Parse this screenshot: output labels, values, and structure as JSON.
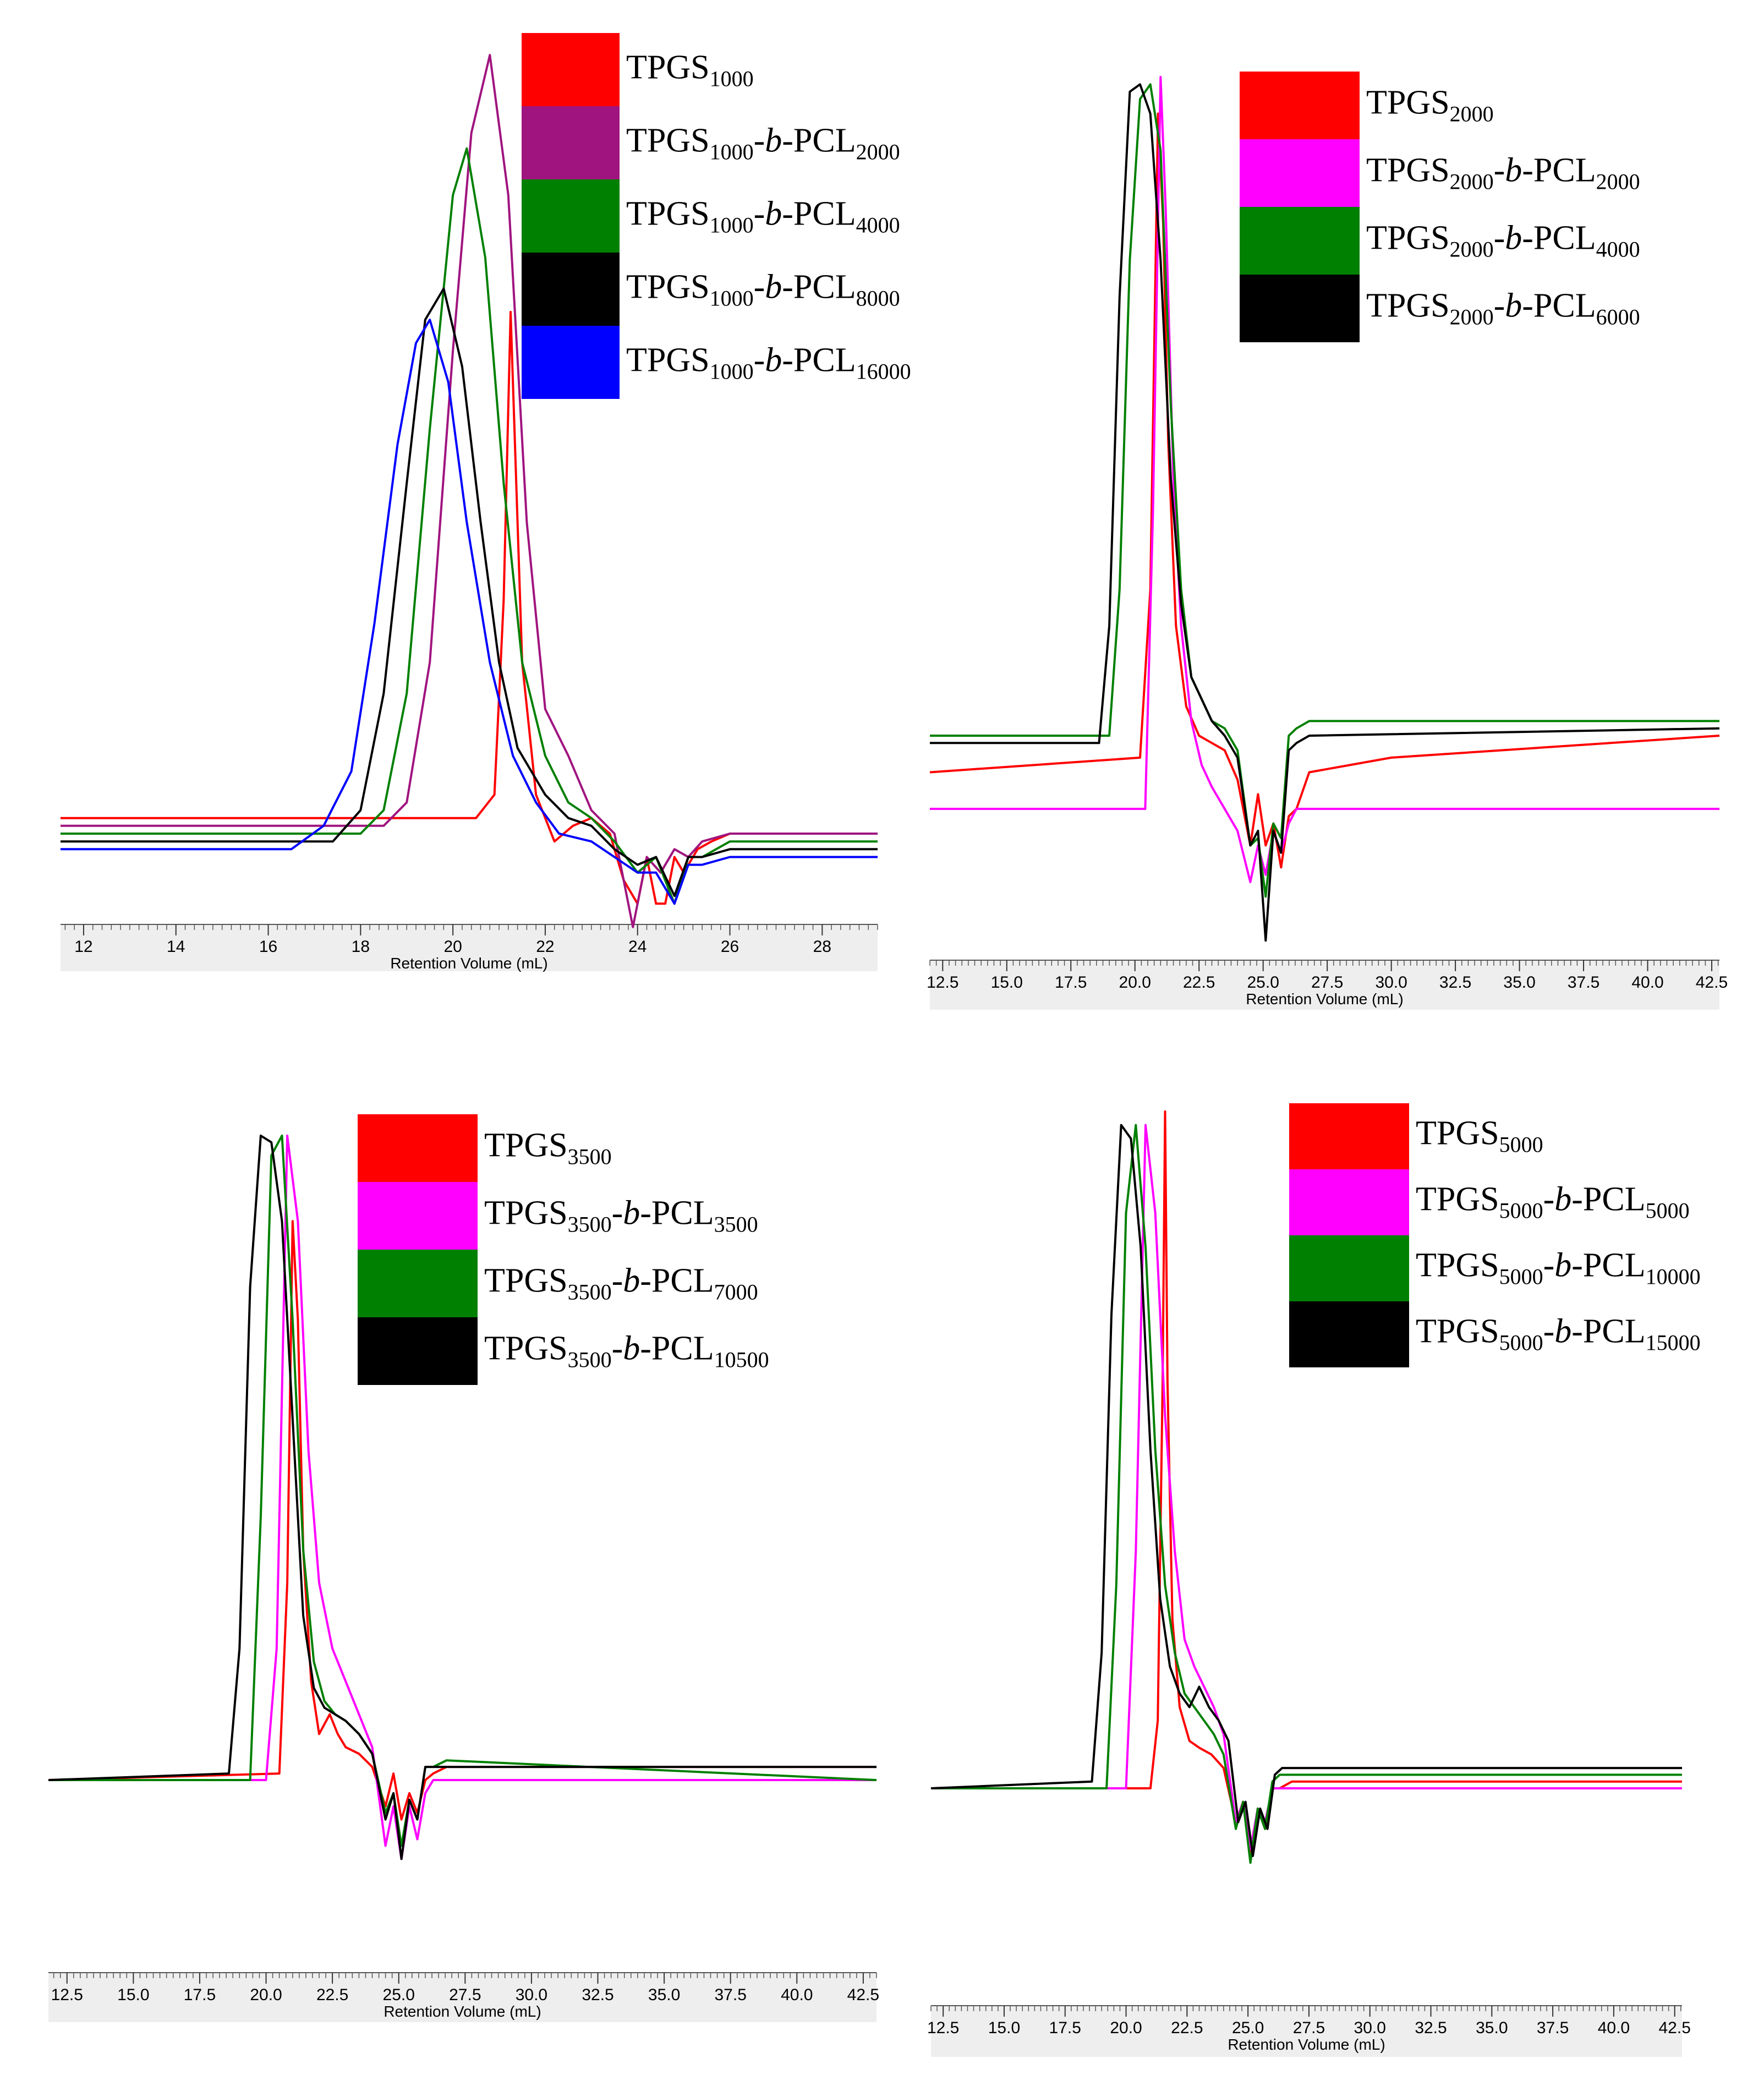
{
  "colors": {
    "red": "#ff0000",
    "purple": "#a0147f",
    "magenta": "#ff00ff",
    "green": "#008000",
    "black": "#000000",
    "blue": "#0000ff"
  },
  "chart_data": [
    {
      "type": "line",
      "panel": "top-left",
      "xlabel": "Retention Volume (mL)",
      "xlim": [
        11.5,
        29.2
      ],
      "xticks": [
        "12",
        "14",
        "16",
        "18",
        "20",
        "22",
        "24",
        "26",
        "28"
      ],
      "xtick_values": [
        12,
        14,
        16,
        18,
        20,
        22,
        24,
        26,
        28
      ],
      "legend_position": "top-right",
      "series": [
        {
          "name": [
            "TPGS",
            "1000",
            "",
            ""
          ],
          "color": "#ff0000",
          "x": [
            11.5,
            20.5,
            20.9,
            21.1,
            21.25,
            21.5,
            21.8,
            22.2,
            22.6,
            23.0,
            23.4,
            23.7,
            24.0,
            24.2,
            24.4,
            24.6,
            24.8,
            25.0,
            25.3,
            25.6,
            26,
            29.2
          ],
          "y": [
            0.02,
            0.02,
            0.05,
            0.3,
            0.67,
            0.22,
            0.05,
            -0.01,
            0.01,
            0.02,
            0.0,
            -0.06,
            -0.09,
            -0.03,
            -0.09,
            -0.09,
            -0.03,
            -0.05,
            -0.02,
            -0.01,
            0.0,
            0.0
          ]
        },
        {
          "name": [
            "TPGS",
            "1000",
            "PCL",
            "2000"
          ],
          "color": "#a0147f",
          "x": [
            11.5,
            18.5,
            19.0,
            19.5,
            20.0,
            20.4,
            20.8,
            21.2,
            21.6,
            22.0,
            22.5,
            23.0,
            23.5,
            23.9,
            24.2,
            24.5,
            24.8,
            25.1,
            25.4,
            26,
            29.2
          ],
          "y": [
            0.01,
            0.01,
            0.04,
            0.22,
            0.62,
            0.9,
            1.0,
            0.82,
            0.4,
            0.16,
            0.1,
            0.03,
            0.0,
            -0.12,
            -0.03,
            -0.05,
            -0.02,
            -0.03,
            -0.01,
            0.0,
            0.0
          ]
        },
        {
          "name": [
            "TPGS",
            "1000",
            "PCL",
            "4000"
          ],
          "color": "#008000",
          "x": [
            11.5,
            18.0,
            18.5,
            19.0,
            19.5,
            20.0,
            20.3,
            20.7,
            21.1,
            21.5,
            22.0,
            22.5,
            23.0,
            23.5,
            24.0,
            24.4,
            24.8,
            25.1,
            25.4,
            26,
            29.2
          ],
          "y": [
            0.0,
            0.0,
            0.03,
            0.18,
            0.52,
            0.82,
            0.88,
            0.74,
            0.45,
            0.22,
            0.1,
            0.04,
            0.02,
            -0.01,
            -0.05,
            -0.03,
            -0.09,
            -0.03,
            -0.03,
            -0.01,
            -0.01
          ]
        },
        {
          "name": [
            "TPGS",
            "1000",
            "PCL",
            "8000"
          ],
          "color": "#000000",
          "x": [
            11.5,
            17.4,
            18.0,
            18.5,
            19.0,
            19.4,
            19.8,
            20.2,
            20.6,
            21.0,
            21.4,
            22.0,
            22.5,
            23.0,
            23.5,
            24.0,
            24.4,
            24.8,
            25.1,
            25.4,
            26,
            29.2
          ],
          "y": [
            -0.01,
            -0.01,
            0.03,
            0.18,
            0.45,
            0.66,
            0.7,
            0.6,
            0.4,
            0.22,
            0.11,
            0.05,
            0.02,
            0.01,
            -0.02,
            -0.04,
            -0.03,
            -0.08,
            -0.03,
            -0.03,
            -0.02,
            -0.02
          ]
        },
        {
          "name": [
            "TPGS",
            "1000",
            "PCL",
            "16000"
          ],
          "color": "#0000ff",
          "x": [
            11.5,
            16.5,
            17.2,
            17.8,
            18.3,
            18.8,
            19.2,
            19.5,
            19.9,
            20.3,
            20.8,
            21.3,
            21.8,
            22.3,
            23.0,
            23.5,
            24.0,
            24.4,
            24.8,
            25.1,
            25.4,
            26,
            29.2
          ],
          "y": [
            -0.02,
            -0.02,
            0.01,
            0.08,
            0.27,
            0.5,
            0.63,
            0.66,
            0.58,
            0.4,
            0.22,
            0.1,
            0.04,
            0.0,
            -0.01,
            -0.03,
            -0.05,
            -0.05,
            -0.09,
            -0.04,
            -0.04,
            -0.03,
            -0.03
          ]
        }
      ]
    },
    {
      "type": "line",
      "panel": "top-right",
      "xlabel": "Retention Volume (mL)",
      "xlim": [
        12.0,
        42.8
      ],
      "xticks": [
        "12.5",
        "15.0",
        "17.5",
        "20.0",
        "22.5",
        "25.0",
        "27.5",
        "30.0",
        "32.5",
        "35.0",
        "37.5",
        "40.0",
        "42.5"
      ],
      "xtick_values": [
        12.5,
        15,
        17.5,
        20,
        22.5,
        25,
        27.5,
        30,
        32.5,
        35,
        37.5,
        40,
        42.5
      ],
      "legend_position": "top-right",
      "series": [
        {
          "name": [
            "TPGS",
            "2000",
            "",
            ""
          ],
          "color": "#ff0000",
          "x": [
            12.0,
            20.2,
            20.6,
            20.9,
            21.1,
            21.3,
            21.6,
            22.0,
            22.5,
            23.0,
            23.5,
            24.0,
            24.5,
            24.8,
            25.1,
            25.4,
            25.7,
            26.0,
            26.3,
            26.8,
            30,
            42.8
          ],
          "y": [
            0.05,
            0.07,
            0.3,
            0.95,
            0.8,
            0.5,
            0.25,
            0.14,
            0.1,
            0.09,
            0.08,
            0.04,
            -0.05,
            0.02,
            -0.05,
            -0.02,
            -0.08,
            -0.01,
            0.0,
            0.05,
            0.07,
            0.1
          ]
        },
        {
          "name": [
            "TPGS",
            "2000",
            "PCL",
            "2000"
          ],
          "color": "#ff00ff",
          "x": [
            12.0,
            20.4,
            20.7,
            21.0,
            21.2,
            21.5,
            21.8,
            22.2,
            22.6,
            23.0,
            23.5,
            24.0,
            24.5,
            24.8,
            25.1,
            25.4,
            25.7,
            26.0,
            26.3,
            26.8,
            42.8
          ],
          "y": [
            0.0,
            0.0,
            0.4,
            1.0,
            0.82,
            0.45,
            0.25,
            0.12,
            0.06,
            0.03,
            0.0,
            -0.03,
            -0.1,
            -0.05,
            -0.09,
            -0.03,
            -0.06,
            -0.02,
            0.0,
            0.0,
            0.0
          ]
        },
        {
          "name": [
            "TPGS",
            "2000",
            "PCL",
            "4000"
          ],
          "color": "#008000",
          "x": [
            12.0,
            19.0,
            19.4,
            19.8,
            20.2,
            20.6,
            21.0,
            21.4,
            21.8,
            22.2,
            22.6,
            23.0,
            23.5,
            24.0,
            24.5,
            24.8,
            25.1,
            25.4,
            25.7,
            26.0,
            26.3,
            26.8,
            42.8
          ],
          "y": [
            0.1,
            0.1,
            0.3,
            0.75,
            0.97,
            0.99,
            0.9,
            0.55,
            0.3,
            0.18,
            0.15,
            0.12,
            0.11,
            0.08,
            -0.05,
            -0.04,
            -0.12,
            -0.02,
            -0.04,
            0.1,
            0.11,
            0.12,
            0.12
          ]
        },
        {
          "name": [
            "TPGS",
            "2000",
            "PCL",
            "6000"
          ],
          "color": "#000000",
          "x": [
            12.0,
            18.6,
            19.0,
            19.4,
            19.8,
            20.2,
            20.6,
            21.0,
            21.4,
            21.8,
            22.2,
            22.6,
            23.0,
            23.5,
            24.0,
            24.5,
            24.8,
            25.1,
            25.4,
            25.7,
            26.0,
            26.3,
            26.8,
            42.8
          ],
          "y": [
            0.09,
            0.09,
            0.25,
            0.7,
            0.98,
            0.99,
            0.95,
            0.75,
            0.45,
            0.28,
            0.18,
            0.15,
            0.12,
            0.1,
            0.07,
            -0.05,
            -0.03,
            -0.18,
            -0.03,
            -0.06,
            0.08,
            0.09,
            0.1,
            0.11
          ]
        }
      ]
    },
    {
      "type": "line",
      "panel": "bottom-left",
      "xlabel": "Retention Volume (mL)",
      "xlim": [
        11.8,
        43.0
      ],
      "xticks": [
        "12.5",
        "15.0",
        "17.5",
        "20.0",
        "22.5",
        "25.0",
        "27.5",
        "30.0",
        "32.5",
        "35.0",
        "37.5",
        "40.0",
        "42.5"
      ],
      "xtick_values": [
        12.5,
        15,
        17.5,
        20,
        22.5,
        25,
        27.5,
        30,
        32.5,
        35,
        37.5,
        40,
        42.5
      ],
      "legend_position": "top-right",
      "series": [
        {
          "name": [
            "TPGS",
            "3500",
            "",
            ""
          ],
          "color": "#ff0000",
          "x": [
            11.8,
            20.5,
            20.8,
            21.0,
            21.2,
            21.4,
            21.7,
            22.0,
            22.4,
            22.7,
            23.0,
            23.5,
            24.0,
            24.5,
            24.8,
            25.1,
            25.4,
            25.7,
            26.0,
            26.3,
            26.8,
            43.0
          ],
          "y": [
            0.0,
            0.01,
            0.3,
            0.85,
            0.7,
            0.35,
            0.15,
            0.07,
            0.1,
            0.07,
            0.05,
            0.04,
            0.02,
            -0.04,
            0.01,
            -0.06,
            -0.02,
            -0.05,
            0.0,
            0.01,
            0.02,
            0.02
          ]
        },
        {
          "name": [
            "TPGS",
            "3500",
            "PCL",
            "3500"
          ],
          "color": "#ff00ff",
          "x": [
            11.8,
            20.0,
            20.4,
            20.8,
            21.2,
            21.6,
            22.0,
            22.5,
            23.0,
            23.5,
            24.0,
            24.5,
            24.8,
            25.1,
            25.4,
            25.7,
            26.0,
            26.3,
            26.8,
            43.0
          ],
          "y": [
            0.0,
            0.0,
            0.2,
            0.98,
            0.85,
            0.5,
            0.3,
            0.2,
            0.15,
            0.1,
            0.05,
            -0.1,
            -0.04,
            -0.12,
            -0.04,
            -0.09,
            -0.02,
            0.0,
            0.0,
            0.0
          ]
        },
        {
          "name": [
            "TPGS",
            "3500",
            "PCL",
            "7000"
          ],
          "color": "#008000",
          "x": [
            11.8,
            19.4,
            19.8,
            20.2,
            20.6,
            21.0,
            21.4,
            21.8,
            22.2,
            22.6,
            23.0,
            23.5,
            24.0,
            24.5,
            24.8,
            25.1,
            25.4,
            25.7,
            26.0,
            26.3,
            26.8,
            43.0
          ],
          "y": [
            0.0,
            0.0,
            0.4,
            0.95,
            0.98,
            0.7,
            0.35,
            0.18,
            0.12,
            0.1,
            0.09,
            0.07,
            0.04,
            -0.05,
            -0.02,
            -0.1,
            -0.03,
            -0.06,
            0.02,
            0.02,
            0.03,
            0.0
          ]
        },
        {
          "name": [
            "TPGS",
            "3500",
            "PCL",
            "10500"
          ],
          "color": "#000000",
          "x": [
            11.8,
            18.6,
            19.0,
            19.4,
            19.8,
            20.2,
            20.6,
            21.0,
            21.4,
            21.8,
            22.2,
            22.6,
            23.0,
            23.5,
            24.0,
            24.5,
            24.8,
            25.1,
            25.4,
            25.7,
            26.0,
            26.3,
            26.8,
            43.0
          ],
          "y": [
            0.0,
            0.01,
            0.2,
            0.75,
            0.98,
            0.97,
            0.85,
            0.55,
            0.25,
            0.14,
            0.11,
            0.1,
            0.09,
            0.07,
            0.04,
            -0.06,
            -0.02,
            -0.12,
            -0.03,
            -0.06,
            0.02,
            0.02,
            0.02,
            0.02
          ]
        }
      ]
    },
    {
      "type": "line",
      "panel": "bottom-right",
      "xlabel": "Retention Volume (mL)",
      "xlim": [
        12.0,
        42.8
      ],
      "xticks": [
        "12.5",
        "15.0",
        "17.5",
        "20.0",
        "22.5",
        "25.0",
        "27.5",
        "30.0",
        "32.5",
        "35.0",
        "37.5",
        "40.0",
        "42.5"
      ],
      "xtick_values": [
        12.5,
        15,
        17.5,
        20,
        22.5,
        25,
        27.5,
        30,
        32.5,
        35,
        37.5,
        40,
        42.5
      ],
      "legend_position": "top-right",
      "series": [
        {
          "name": [
            "TPGS",
            "5000",
            "",
            ""
          ],
          "color": "#ff0000",
          "x": [
            12.0,
            21.0,
            21.3,
            21.5,
            21.6,
            21.7,
            21.9,
            22.2,
            22.6,
            23.0,
            23.5,
            24.0,
            24.5,
            24.8,
            25.1,
            25.4,
            25.7,
            26.0,
            26.3,
            26.8,
            42.8
          ],
          "y": [
            0.0,
            0.0,
            0.1,
            0.6,
            1.0,
            0.6,
            0.25,
            0.12,
            0.07,
            0.06,
            0.05,
            0.03,
            -0.05,
            -0.02,
            -0.1,
            -0.03,
            -0.06,
            0.0,
            0.0,
            0.01,
            0.01
          ]
        },
        {
          "name": [
            "TPGS",
            "5000",
            "PCL",
            "5000"
          ],
          "color": "#ff00ff",
          "x": [
            12.0,
            20.0,
            20.4,
            20.8,
            21.2,
            21.6,
            22.0,
            22.4,
            22.8,
            23.2,
            23.6,
            24.0,
            24.5,
            24.8,
            25.1,
            25.4,
            25.7,
            26.0,
            26.3,
            26.8,
            42.8
          ],
          "y": [
            0.0,
            0.0,
            0.35,
            0.98,
            0.85,
            0.55,
            0.35,
            0.22,
            0.18,
            0.15,
            0.12,
            0.08,
            -0.05,
            -0.02,
            -0.09,
            -0.03,
            -0.05,
            0.0,
            0.0,
            0.0,
            0.0
          ]
        },
        {
          "name": [
            "TPGS",
            "5000",
            "PCL",
            "10000"
          ],
          "color": "#008000",
          "x": [
            12.0,
            19.2,
            19.6,
            20.0,
            20.4,
            20.8,
            21.2,
            21.6,
            22.0,
            22.4,
            22.8,
            23.2,
            23.6,
            24.0,
            24.5,
            24.8,
            25.1,
            25.4,
            25.7,
            26.0,
            26.3,
            26.8,
            42.8
          ],
          "y": [
            0.0,
            0.0,
            0.3,
            0.85,
            0.98,
            0.8,
            0.5,
            0.3,
            0.2,
            0.14,
            0.12,
            0.1,
            0.08,
            0.05,
            -0.06,
            -0.02,
            -0.11,
            -0.03,
            -0.06,
            0.01,
            0.02,
            0.02,
            0.02
          ]
        },
        {
          "name": [
            "TPGS",
            "5000",
            "PCL",
            "15000"
          ],
          "color": "#000000",
          "x": [
            12.0,
            18.6,
            19.0,
            19.4,
            19.8,
            20.2,
            20.6,
            21.0,
            21.4,
            21.8,
            22.2,
            22.6,
            23.0,
            23.4,
            23.8,
            24.2,
            24.6,
            24.9,
            25.2,
            25.5,
            25.8,
            26.1,
            26.4,
            26.9,
            42.8
          ],
          "y": [
            0.0,
            0.01,
            0.2,
            0.7,
            0.98,
            0.96,
            0.8,
            0.5,
            0.28,
            0.18,
            0.14,
            0.12,
            0.15,
            0.12,
            0.1,
            0.07,
            -0.05,
            -0.02,
            -0.1,
            -0.03,
            -0.06,
            0.02,
            0.03,
            0.03,
            0.03
          ]
        }
      ]
    }
  ]
}
